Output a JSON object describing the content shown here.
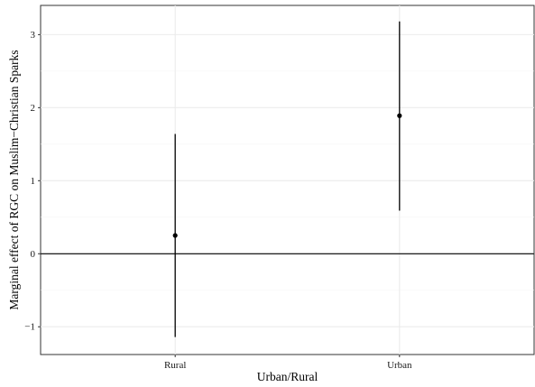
{
  "chart_data": {
    "type": "scatter",
    "categories": [
      "Rural",
      "Urban"
    ],
    "points": [
      {
        "category": "Rural",
        "estimate": 0.25,
        "lower": -1.14,
        "upper": 1.64
      },
      {
        "category": "Urban",
        "estimate": 1.89,
        "lower": 0.59,
        "upper": 3.18
      }
    ],
    "yticks": [
      -1,
      0,
      1,
      2,
      3
    ],
    "ylim": [
      -1.38,
      3.4
    ],
    "reference_line_y": 0,
    "xlabel": "Urban/Rural",
    "ylabel": "Marginal effect of RGC on Muslim−Christian Sparks",
    "grid": true,
    "colors": {
      "point": "#000000",
      "grid": "#ebebeb",
      "panel_border": "#333333"
    }
  }
}
